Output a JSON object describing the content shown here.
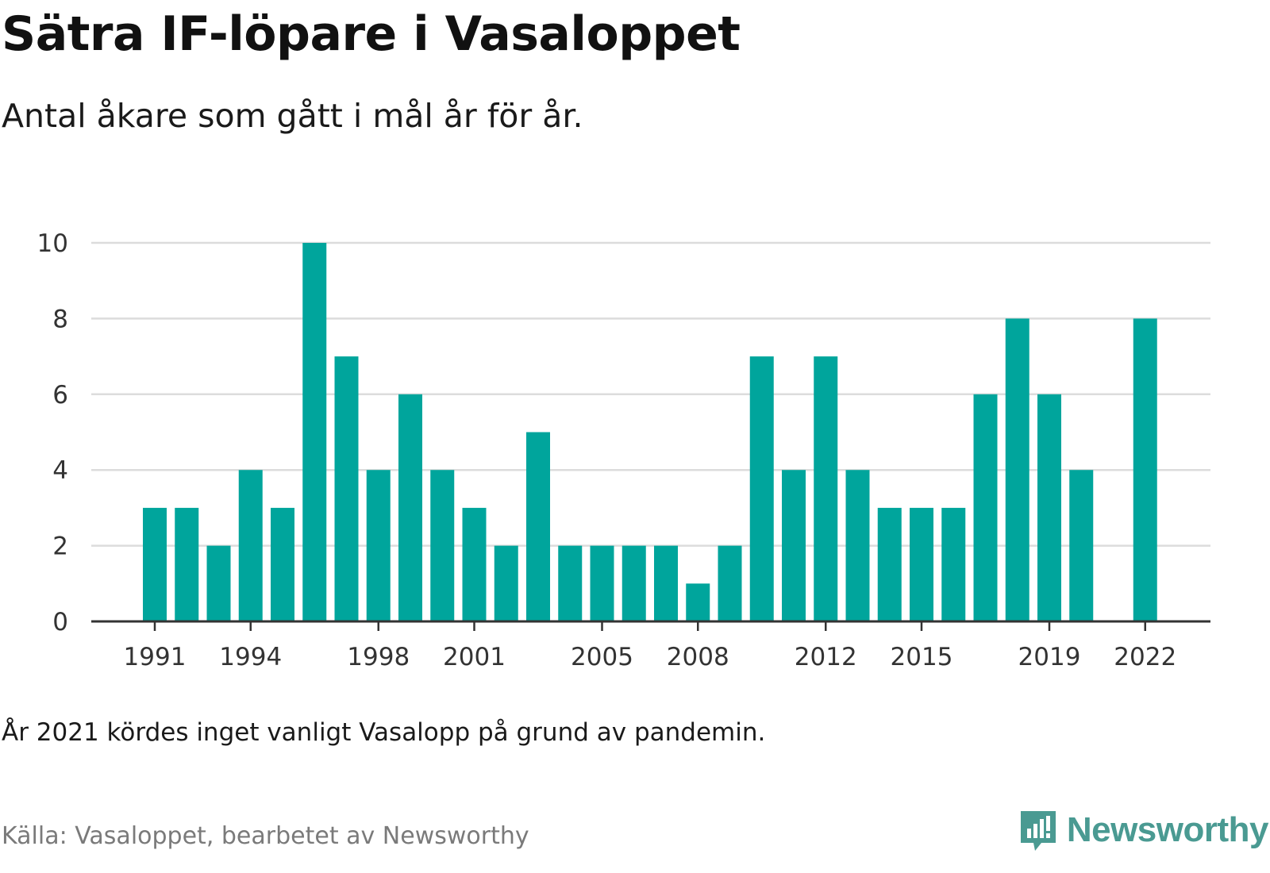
{
  "header": {
    "title": "Sätra IF-löpare i Vasaloppet",
    "subtitle": "Antal åkare som gått i mål år för år."
  },
  "footer": {
    "note": "År 2021 kördes inget vanligt Vasalopp på grund av pandemin.",
    "source": "Källa: Vasaloppet, bearbetet av Newsworthy",
    "brand": "Newsworthy"
  },
  "colors": {
    "bar": "#00a59c",
    "grid": "#dcdcdc",
    "axis": "#333333",
    "brand": "#4a9a92"
  },
  "chart_data": {
    "type": "bar",
    "title": "Sätra IF-löpare i Vasaloppet",
    "subtitle": "Antal åkare som gått i mål år för år.",
    "xlabel": "",
    "ylabel": "",
    "x": [
      1991,
      1992,
      1993,
      1994,
      1995,
      1996,
      1997,
      1998,
      1999,
      2000,
      2001,
      2002,
      2003,
      2004,
      2005,
      2006,
      2007,
      2008,
      2009,
      2010,
      2011,
      2012,
      2013,
      2014,
      2015,
      2016,
      2017,
      2018,
      2019,
      2020,
      2021,
      2022
    ],
    "values": [
      3,
      3,
      2,
      4,
      3,
      10,
      7,
      4,
      6,
      4,
      3,
      2,
      5,
      2,
      2,
      2,
      2,
      1,
      2,
      7,
      4,
      7,
      4,
      3,
      3,
      3,
      6,
      8,
      6,
      4,
      null,
      8
    ],
    "xticks": [
      1991,
      1994,
      1998,
      2001,
      2005,
      2008,
      2012,
      2015,
      2019,
      2022
    ],
    "yticks": [
      0,
      2,
      4,
      6,
      8,
      10
    ],
    "ylim": [
      0,
      10
    ],
    "grid": "horizontal"
  }
}
